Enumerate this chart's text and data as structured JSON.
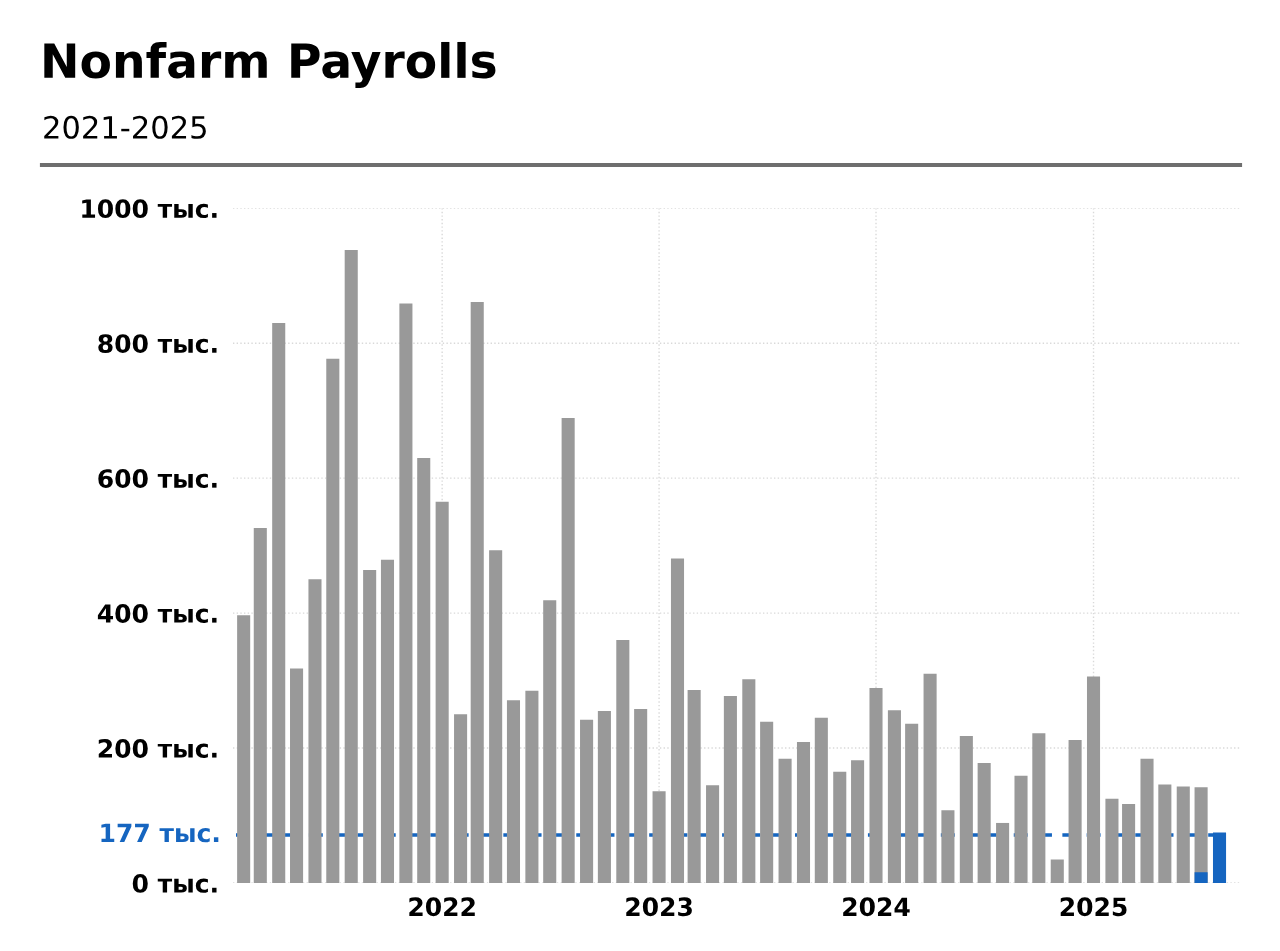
{
  "chart_data": {
    "type": "bar",
    "title": "Nonfarm Payrolls",
    "subtitle": "2021-2025",
    "x": [
      "2021-02",
      "2021-03",
      "2021-04",
      "2021-05",
      "2021-06",
      "2021-07",
      "2021-08",
      "2021-09",
      "2021-10",
      "2021-11",
      "2021-12",
      "2022-01",
      "2022-02",
      "2022-03",
      "2022-04",
      "2022-05",
      "2022-06",
      "2022-07",
      "2022-08",
      "2022-09",
      "2022-10",
      "2022-11",
      "2022-12",
      "2023-01",
      "2023-02",
      "2023-03",
      "2023-04",
      "2023-05",
      "2023-06",
      "2023-07",
      "2023-08",
      "2023-09",
      "2023-10",
      "2023-11",
      "2023-12",
      "2024-01",
      "2024-02",
      "2024-03",
      "2024-04",
      "2024-05",
      "2024-06",
      "2024-07",
      "2024-08",
      "2024-09",
      "2024-10",
      "2024-11",
      "2024-12",
      "2025-01",
      "2025-02",
      "2025-03",
      "2025-04",
      "2025-05",
      "2025-06",
      "2025-07",
      "2025-08"
    ],
    "series": [
      {
        "color": "#999999",
        "values": [
          397,
          526,
          830,
          318,
          450,
          777,
          938,
          464,
          479,
          859,
          630,
          565,
          250,
          861,
          493,
          271,
          285,
          419,
          689,
          242,
          255,
          360,
          258,
          136,
          481,
          286,
          145,
          277,
          302,
          239,
          184,
          209,
          245,
          165,
          182,
          289,
          256,
          236,
          310,
          108,
          218,
          178,
          89,
          159,
          222,
          35,
          212,
          306,
          125,
          117,
          184,
          146,
          143,
          142,
          null
        ]
      },
      {
        "color": "#1565c0",
        "values": [
          null,
          null,
          null,
          null,
          null,
          null,
          null,
          null,
          null,
          null,
          null,
          null,
          null,
          null,
          null,
          null,
          null,
          null,
          null,
          null,
          null,
          null,
          null,
          null,
          null,
          null,
          null,
          null,
          null,
          null,
          null,
          null,
          null,
          null,
          null,
          null,
          null,
          null,
          null,
          null,
          null,
          null,
          null,
          null,
          null,
          null,
          null,
          null,
          null,
          null,
          null,
          null,
          null,
          16,
          75
        ]
      }
    ],
    "xlim": [
      "2021-01-14",
      "2025-09-05"
    ],
    "xticks": [
      {
        "value": "2022-01-01",
        "label": "2022"
      },
      {
        "value": "2023-01-01",
        "label": "2023"
      },
      {
        "value": "2024-01-01",
        "label": "2024"
      },
      {
        "value": "2025-01-01",
        "label": "2025"
      }
    ],
    "ylim": [
      0,
      1000
    ],
    "yticks": [
      {
        "value": 0,
        "label": "0 тыс."
      },
      {
        "value": 200,
        "label": "200 тыс."
      },
      {
        "value": 400,
        "label": "400 тыс."
      },
      {
        "value": 600,
        "label": "600 тыс."
      },
      {
        "value": 800,
        "label": "800 тыс."
      },
      {
        "value": 1000,
        "label": "1000 тыс."
      }
    ],
    "ref_lines": [
      {
        "axis": "y",
        "value": 71,
        "label": "177 тыс.",
        "color": "#1565c0",
        "line_style": "dashed"
      }
    ],
    "grid": true,
    "legend": false
  }
}
